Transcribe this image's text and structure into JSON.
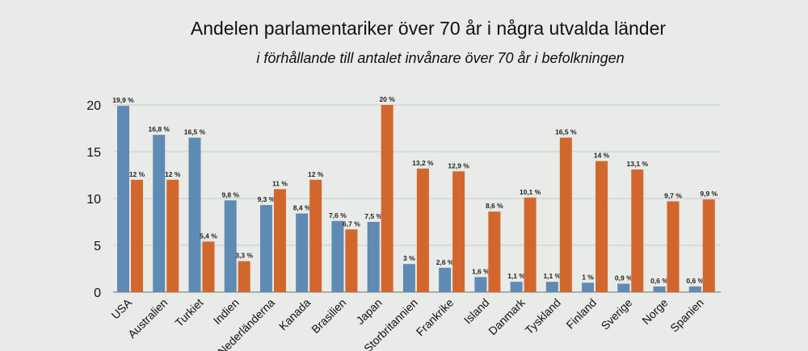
{
  "chart_data": {
    "type": "bar",
    "title": "Andelen parlamentariker över 70 år i några utvalda länder",
    "subtitle": "i förhållande till antalet invånare över 70 år i befolkningen",
    "categories": [
      "USA",
      "Australien",
      "Turkiet",
      "Indien",
      "Nederländerna",
      "Kanada",
      "Brasilien",
      "Japan",
      "Storbritannien",
      "Frankrike",
      "Island",
      "Danmark",
      "Tyskland",
      "Finland",
      "Sverige",
      "Norge",
      "Spanien"
    ],
    "series": [
      {
        "values": [
          19.9,
          16.8,
          16.5,
          9.8,
          9.3,
          8.4,
          7.6,
          7.5,
          3,
          2.6,
          1.6,
          1.1,
          1.1,
          1,
          0.9,
          0.6,
          0.6
        ],
        "labels": [
          "19,9 %",
          "16,8 %",
          "16,5 %",
          "9,8 %",
          "9,3 %",
          "8,4 %",
          "7,6 %",
          "7,5 %",
          "3 %",
          "2,6 %",
          "1,6 %",
          "1,1 %",
          "1,1 %",
          "1 %",
          "0,9 %",
          "0,6 %",
          "0,6 %"
        ],
        "color": "#5f8ab3"
      },
      {
        "values": [
          12,
          12,
          5.4,
          3.3,
          11,
          12,
          6.7,
          20,
          13.2,
          12.9,
          8.6,
          10.1,
          16.5,
          14,
          13.1,
          9.7,
          9.9
        ],
        "labels": [
          "12 %",
          "12 %",
          "5,4 %",
          "3,3 %",
          "11 %",
          "12 %",
          "6,7 %",
          "20 %",
          "13,2 %",
          "12,9 %",
          "8,6 %",
          "10,1 %",
          "16,5 %",
          "14 %",
          "13,1 %",
          "9,7 %",
          "9,9 %"
        ],
        "color": "#d2672e"
      }
    ],
    "yticks": [
      "0",
      "5",
      "10",
      "15",
      "20"
    ],
    "ylim": [
      0,
      20
    ],
    "grid": true,
    "xlabel": "",
    "ylabel": ""
  }
}
